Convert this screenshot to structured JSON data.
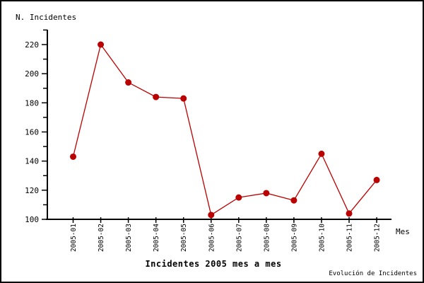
{
  "chart": {
    "y_axis_title": "N. Incidentes",
    "x_axis_title": "Mes",
    "title": "Incidentes 2005 mes a mes",
    "watermark": "Evolución de Incidentes"
  },
  "chart_data": {
    "type": "line",
    "title": "Incidentes 2005 mes a mes",
    "xlabel": "Mes",
    "ylabel": "N. Incidentes",
    "categories": [
      "2005-01",
      "2005-02",
      "2005-03",
      "2005-04",
      "2005-05",
      "2005-06",
      "2005-07",
      "2005-08",
      "2005-09",
      "2005-10",
      "2005-11",
      "2005-12"
    ],
    "values": [
      143,
      220,
      194,
      184,
      183,
      103,
      115,
      118,
      113,
      145,
      104,
      127
    ],
    "series_name": "Incidentes",
    "ylim": [
      100,
      230
    ],
    "yticks_major": [
      100,
      120,
      140,
      160,
      180,
      200,
      220
    ],
    "yticks_minor": [
      110,
      130,
      150,
      170,
      190,
      210,
      230
    ],
    "grid": false,
    "legend": "none",
    "line_color": "#bb0000",
    "marker": "circle",
    "x_tick_label_rotation": -90,
    "axis_color": "#000000",
    "background_color": "#ffffff"
  }
}
